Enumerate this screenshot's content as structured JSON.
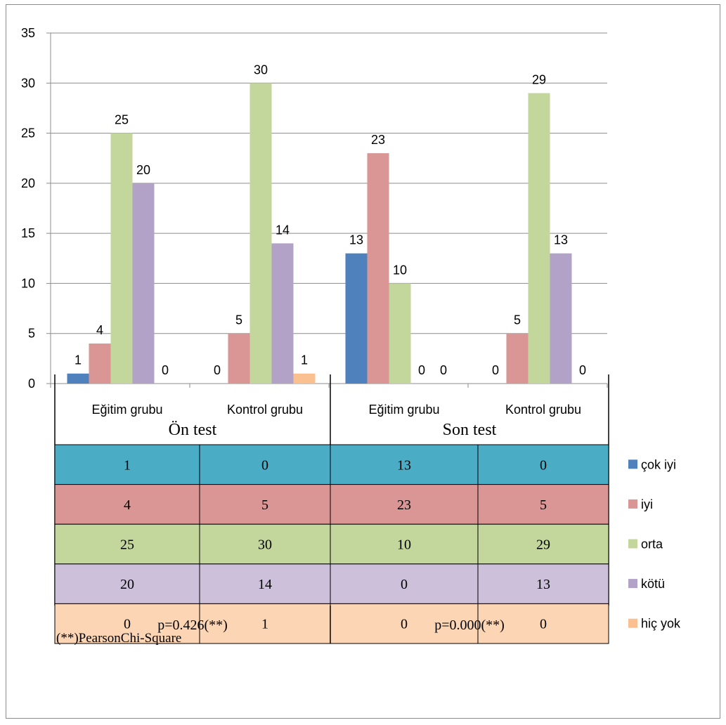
{
  "chart_data": {
    "type": "bar",
    "groups": [
      {
        "label": "Ön test",
        "categories": [
          "Eğitim grubu",
          "Kontrol grubu"
        ]
      },
      {
        "label": "Son test",
        "categories": [
          "Eğitim grubu",
          "Kontrol grubu"
        ]
      }
    ],
    "categories": [
      "Eğitim grubu",
      "Kontrol grubu",
      "Eğitim grubu",
      "Kontrol grubu"
    ],
    "series": [
      {
        "name": "çok iyi",
        "color": "#4F81BD",
        "row_color": "#4BACC6",
        "values": [
          1,
          0,
          13,
          0
        ]
      },
      {
        "name": "iyi",
        "color": "#D99694",
        "row_color": "#D99694",
        "values": [
          4,
          5,
          23,
          5
        ]
      },
      {
        "name": "orta",
        "color": "#C3D69B",
        "row_color": "#C3D69B",
        "values": [
          25,
          30,
          10,
          29
        ]
      },
      {
        "name": "kötü",
        "color": "#B3A2C7",
        "row_color": "#CCC0DA",
        "values": [
          20,
          14,
          0,
          13
        ]
      },
      {
        "name": "hiç yok",
        "color": "#FAC090",
        "row_color": "#FCD5B5",
        "values": [
          0,
          1,
          0,
          0
        ]
      }
    ],
    "yticks": [
      "0",
      "5",
      "10",
      "15",
      "20",
      "25",
      "30",
      "35"
    ],
    "ylim": [
      0,
      35
    ],
    "grid": true,
    "legend": "right",
    "p_values": [
      "p=0.426(**)",
      "p=0.000(**)"
    ],
    "footnote": "(**)PearsonChi-Square"
  }
}
